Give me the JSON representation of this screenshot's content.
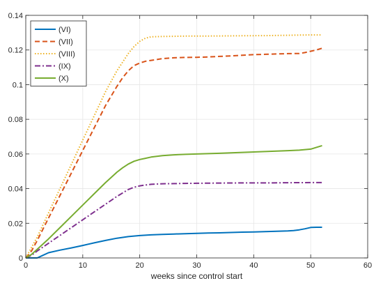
{
  "chart_data": {
    "type": "line",
    "title": "",
    "xlabel": "weeks since control start",
    "ylabel": "",
    "xlim": [
      0,
      60
    ],
    "ylim": [
      0,
      0.14
    ],
    "xticks": [
      0,
      10,
      20,
      30,
      40,
      50,
      60
    ],
    "xtick_labels": [
      "0",
      "10",
      "20",
      "30",
      "40",
      "50",
      "60"
    ],
    "yticks": [
      0,
      0.02,
      0.04,
      0.06,
      0.08,
      0.1,
      0.12,
      0.14
    ],
    "ytick_labels": [
      "0",
      "0.02",
      "0.04",
      "0.06",
      "0.08",
      "0.1",
      "0.12",
      "0.14"
    ],
    "grid": true,
    "legend_position": "top-left",
    "series": [
      {
        "name": "(VI)",
        "color": "#0072BD",
        "style": "solid",
        "x": [
          0,
          1,
          2,
          3,
          4,
          6,
          8,
          10,
          12,
          14,
          16,
          18,
          20,
          22,
          24,
          26,
          28,
          30,
          32,
          34,
          36,
          38,
          40,
          42,
          44,
          46,
          47,
          48,
          49,
          50,
          51,
          52
        ],
        "y": [
          0,
          0,
          0,
          0.0015,
          0.003,
          0.0045,
          0.0058,
          0.0072,
          0.0087,
          0.0101,
          0.0114,
          0.0123,
          0.0129,
          0.0133,
          0.0136,
          0.0138,
          0.014,
          0.0142,
          0.0144,
          0.0145,
          0.0147,
          0.0149,
          0.015,
          0.0152,
          0.0154,
          0.0156,
          0.0158,
          0.0162,
          0.0168,
          0.0176,
          0.0177,
          0.0177
        ]
      },
      {
        "name": "(VII)",
        "color": "#D95319",
        "style": "dashed",
        "x": [
          0,
          1,
          2,
          4,
          6,
          8,
          10,
          12,
          14,
          16,
          17,
          18,
          19,
          20,
          21,
          22,
          24,
          26,
          28,
          30,
          32,
          34,
          36,
          38,
          40,
          42,
          44,
          46,
          48,
          49,
          50,
          51,
          52
        ],
        "y": [
          0,
          0.004,
          0.01,
          0.023,
          0.036,
          0.049,
          0.062,
          0.075,
          0.088,
          0.099,
          0.104,
          0.108,
          0.111,
          0.1125,
          0.1135,
          0.114,
          0.115,
          0.1155,
          0.1157,
          0.1158,
          0.116,
          0.1163,
          0.1166,
          0.117,
          0.1173,
          0.1175,
          0.1177,
          0.1179,
          0.118,
          0.1185,
          0.1193,
          0.12,
          0.121
        ]
      },
      {
        "name": "(VIII)",
        "color": "#EDB120",
        "style": "dotted",
        "x": [
          0,
          1,
          2,
          4,
          6,
          8,
          10,
          12,
          14,
          16,
          17,
          18,
          19,
          20,
          21,
          22,
          24,
          26,
          28,
          30,
          34,
          38,
          42,
          46,
          48,
          50,
          52
        ],
        "y": [
          0,
          0.006,
          0.012,
          0.026,
          0.04,
          0.054,
          0.068,
          0.082,
          0.096,
          0.108,
          0.113,
          0.118,
          0.122,
          0.125,
          0.1268,
          0.1276,
          0.1278,
          0.1279,
          0.128,
          0.128,
          0.1281,
          0.1282,
          0.1283,
          0.1285,
          0.1286,
          0.1287,
          0.1287
        ]
      },
      {
        "name": "(IX)",
        "color": "#7E2F8E",
        "style": "dashdot",
        "x": [
          0,
          1,
          2,
          4,
          6,
          8,
          10,
          12,
          14,
          16,
          17,
          18,
          19,
          20,
          21,
          22,
          24,
          26,
          28,
          30,
          34,
          38,
          42,
          46,
          50,
          52
        ],
        "y": [
          0,
          0.0015,
          0.004,
          0.0085,
          0.013,
          0.0175,
          0.022,
          0.0265,
          0.031,
          0.0355,
          0.0375,
          0.0395,
          0.0408,
          0.0416,
          0.0421,
          0.0425,
          0.0428,
          0.0429,
          0.043,
          0.0431,
          0.0432,
          0.0433,
          0.0433,
          0.0434,
          0.0435,
          0.0435
        ]
      },
      {
        "name": "(X)",
        "color": "#77AC30",
        "style": "solid",
        "x": [
          0,
          1,
          2,
          4,
          6,
          8,
          10,
          12,
          14,
          16,
          17,
          18,
          19,
          20,
          21,
          22,
          24,
          26,
          28,
          30,
          34,
          38,
          42,
          46,
          48,
          50,
          51,
          52
        ],
        "y": [
          0,
          0.002,
          0.005,
          0.011,
          0.0175,
          0.024,
          0.0305,
          0.037,
          0.0435,
          0.0495,
          0.052,
          0.0542,
          0.0558,
          0.0568,
          0.0575,
          0.0582,
          0.059,
          0.0595,
          0.0598,
          0.06,
          0.0604,
          0.0609,
          0.0614,
          0.0619,
          0.0622,
          0.0628,
          0.0638,
          0.0648
        ]
      }
    ]
  }
}
